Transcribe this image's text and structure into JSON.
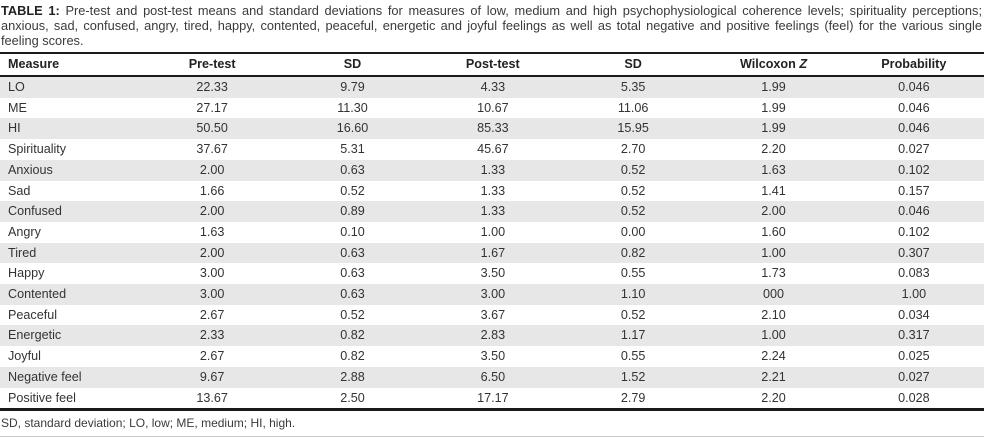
{
  "caption": {
    "label": "TABLE 1:",
    "text": " Pre-test and post-test means and standard deviations for measures of low, medium and high psychophysiological coherence levels; spirituality perceptions; anxious, sad, confused, angry, tired, happy, contented, peaceful, energetic and joyful feelings as well as total negative and positive feelings (feel) for the various single feeling scores."
  },
  "table": {
    "headers": {
      "measure": "Measure",
      "pretest": "Pre-test",
      "sd1": "SD",
      "posttest": "Post-test",
      "sd2": "SD",
      "wilcoxon_word": "Wilcoxon",
      "wilcoxon_symbol": "Z",
      "probability": "Probability"
    },
    "rows": [
      {
        "measure": "LO",
        "values": [
          "22.33",
          "9.79",
          "4.33",
          "5.35",
          "1.99",
          "0.046"
        ]
      },
      {
        "measure": "ME",
        "values": [
          "27.17",
          "11.30",
          "10.67",
          "11.06",
          "1.99",
          "0.046"
        ]
      },
      {
        "measure": "HI",
        "values": [
          "50.50",
          "16.60",
          "85.33",
          "15.95",
          "1.99",
          "0.046"
        ]
      },
      {
        "measure": "Spirituality",
        "values": [
          "37.67",
          "5.31",
          "45.67",
          "2.70",
          "2.20",
          "0.027"
        ]
      },
      {
        "measure": "Anxious",
        "values": [
          "2.00",
          "0.63",
          "1.33",
          "0.52",
          "1.63",
          "0.102"
        ]
      },
      {
        "measure": "Sad",
        "values": [
          "1.66",
          "0.52",
          "1.33",
          "0.52",
          "1.41",
          "0.157"
        ]
      },
      {
        "measure": "Confused",
        "values": [
          "2.00",
          "0.89",
          "1.33",
          "0.52",
          "2.00",
          "0.046"
        ]
      },
      {
        "measure": "Angry",
        "values": [
          "1.63",
          "0.10",
          "1.00",
          "0.00",
          "1.60",
          "0.102"
        ]
      },
      {
        "measure": "Tired",
        "values": [
          "2.00",
          "0.63",
          "1.67",
          "0.82",
          "1.00",
          "0.307"
        ]
      },
      {
        "measure": "Happy",
        "values": [
          "3.00",
          "0.63",
          "3.50",
          "0.55",
          "1.73",
          "0.083"
        ]
      },
      {
        "measure": "Contented",
        "values": [
          "3.00",
          "0.63",
          "3.00",
          "1.10",
          "000",
          "1.00"
        ]
      },
      {
        "measure": "Peaceful",
        "values": [
          "2.67",
          "0.52",
          "3.67",
          "0.52",
          "2.10",
          "0.034"
        ]
      },
      {
        "measure": "Energetic",
        "values": [
          "2.33",
          "0.82",
          "2.83",
          "1.17",
          "1.00",
          "0.317"
        ]
      },
      {
        "measure": "Joyful",
        "values": [
          "2.67",
          "0.82",
          "3.50",
          "0.55",
          "2.24",
          "0.025"
        ]
      },
      {
        "measure": "Negative feel",
        "values": [
          "9.67",
          "2.88",
          "6.50",
          "1.52",
          "2.21",
          "0.027"
        ]
      },
      {
        "measure": "Positive feel",
        "values": [
          "13.67",
          "2.50",
          "17.17",
          "2.79",
          "2.20",
          "0.028"
        ]
      }
    ]
  },
  "footnote": "SD, standard deviation; LO, low; ME, medium; HI, high.",
  "colors": {
    "stripe": "#e7e7e7",
    "rule": "#1a1a1a",
    "text": "#333333"
  }
}
